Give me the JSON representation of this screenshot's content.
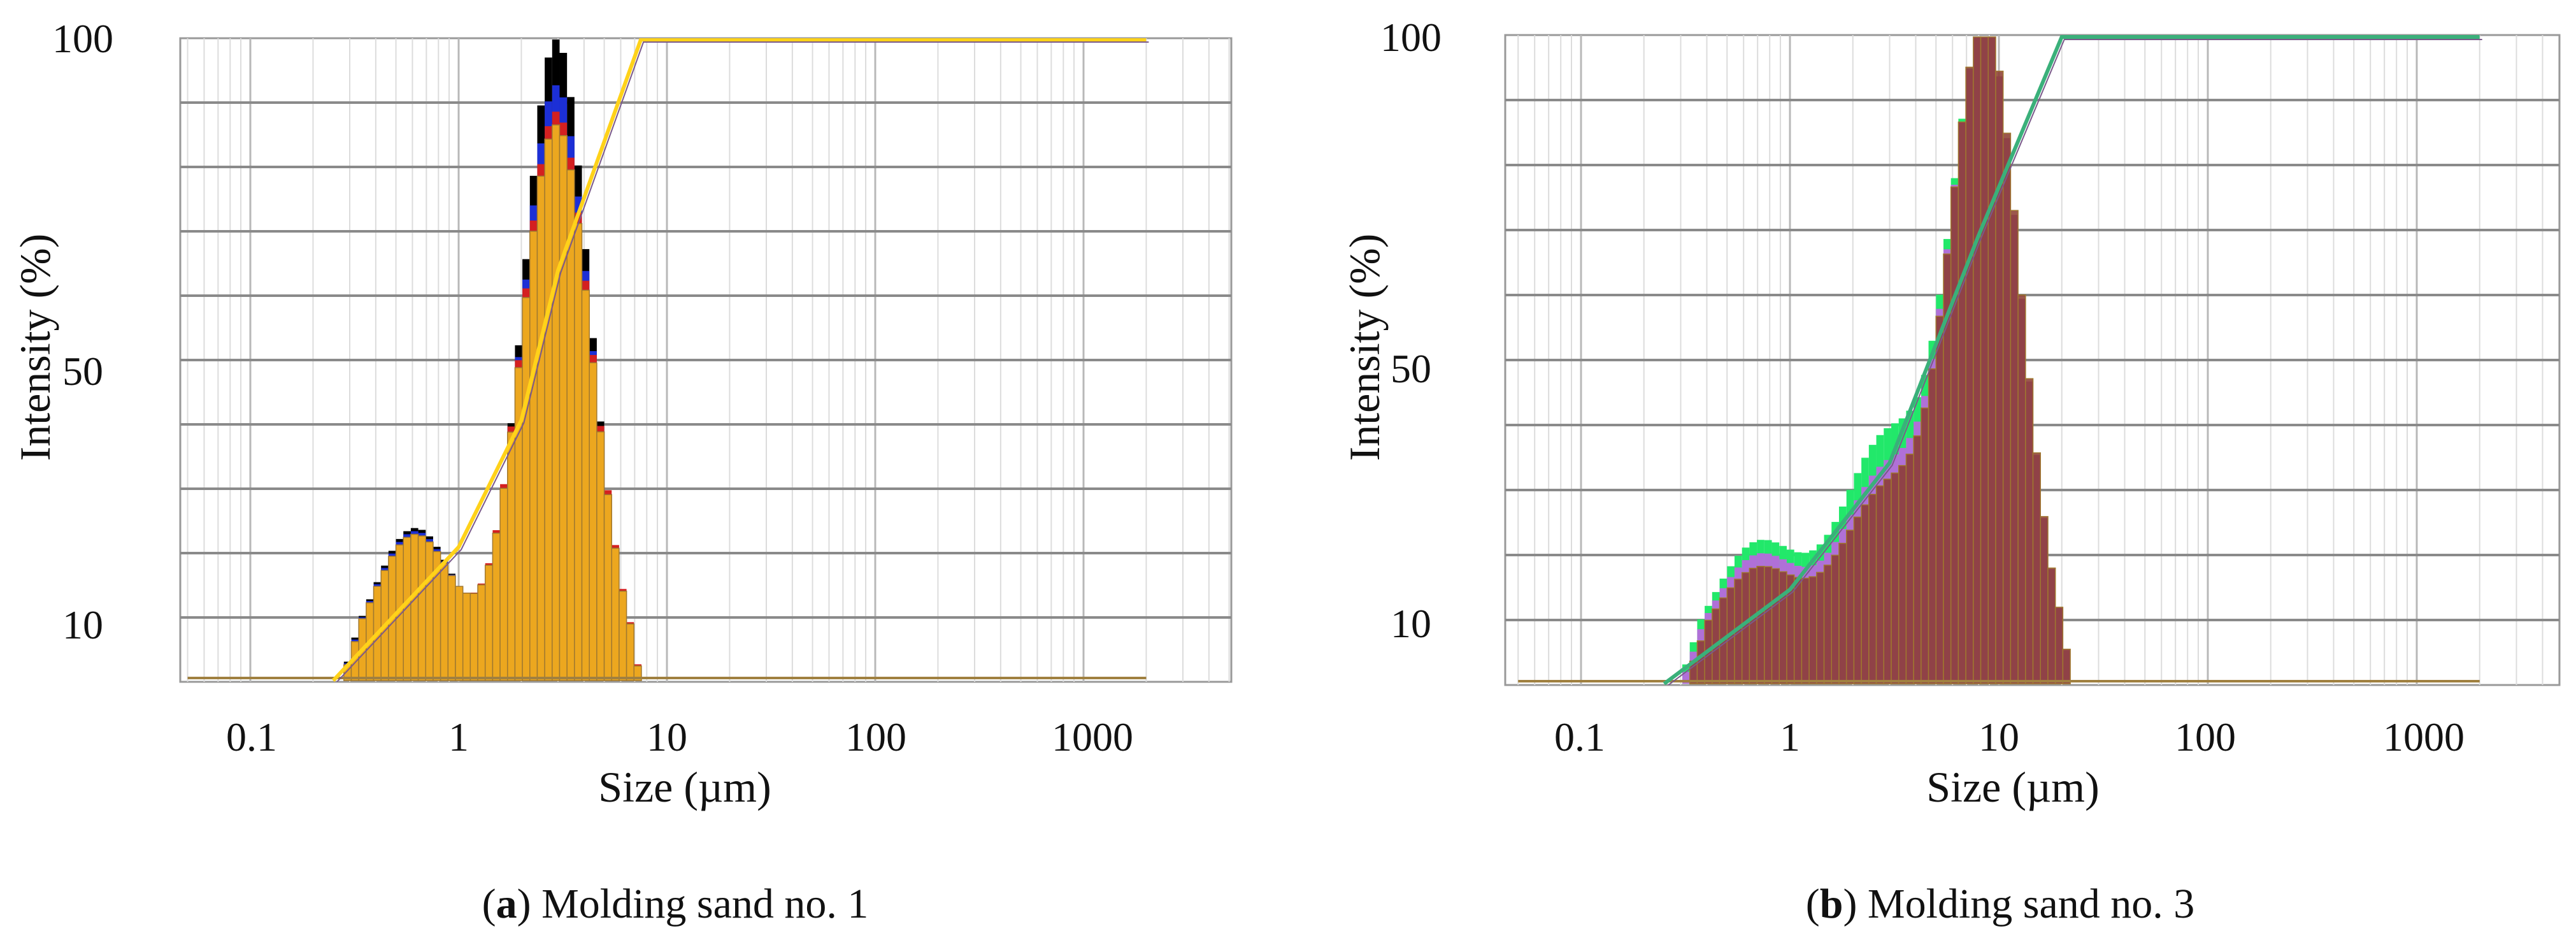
{
  "chart_data": [
    {
      "type": "bar",
      "title": "",
      "caption_letter": "a",
      "caption_text": "Molding sand no. 1",
      "xlabel": "Size (µm)",
      "ylabel": "Intensity (%)",
      "xscale": "log",
      "xlim": [
        0.05,
        3000
      ],
      "ylim": [
        5,
        100
      ],
      "x_ticks": [
        "0.1",
        "1",
        "10",
        "100",
        "1000"
      ],
      "y_ticks": [
        "10",
        "50",
        "100"
      ],
      "grid": true,
      "series": [
        {
          "name": "black",
          "color": "#000000",
          "peaks": [
            {
              "center": 0.62,
              "width": 0.2,
              "height": 25
            },
            {
              "center": 2.95,
              "width": 0.16,
              "height": 100
            }
          ]
        },
        {
          "name": "blue",
          "color": "#1c2fd6",
          "peaks": [
            {
              "center": 0.62,
              "width": 0.2,
              "height": 24.5
            },
            {
              "center": 2.95,
              "width": 0.165,
              "height": 93
            }
          ]
        },
        {
          "name": "red",
          "color": "#d42020",
          "peaks": [
            {
              "center": 0.62,
              "width": 0.2,
              "height": 24
            },
            {
              "center": 2.95,
              "width": 0.17,
              "height": 89
            }
          ]
        },
        {
          "name": "yellow",
          "color": "#f0c020",
          "peaks": [
            {
              "center": 0.62,
              "width": 0.2,
              "height": 24
            },
            {
              "center": 2.95,
              "width": 0.17,
              "height": 87
            }
          ]
        }
      ],
      "cumulative": {
        "color": "#ffd21a",
        "start": 0.25,
        "end": 7.5,
        "shoulder": [
          [
            1.0,
            22
          ],
          [
            2.0,
            42
          ],
          [
            3.0,
            65
          ]
        ]
      }
    },
    {
      "type": "bar",
      "title": "",
      "caption_letter": "b",
      "caption_text": "Molding sand no. 3",
      "xlabel": "Size (µm)",
      "ylabel": "Intensity (%)",
      "xscale": "log",
      "xlim": [
        0.05,
        3000
      ],
      "ylim": [
        5,
        100
      ],
      "x_ticks": [
        "0.1",
        "1",
        "10",
        "100",
        "1000"
      ],
      "y_ticks": [
        "10",
        "50",
        "100"
      ],
      "grid": true,
      "series": [
        {
          "name": "green",
          "color": "#22e86a",
          "peaks": [
            {
              "center": 0.7,
              "width": 0.22,
              "height": 22
            },
            {
              "center": 2.9,
              "width": 0.22,
              "height": 38
            },
            {
              "center": 8.7,
              "width": 0.17,
              "height": 98
            }
          ]
        },
        {
          "name": "violet",
          "color": "#b070d8",
          "peaks": [
            {
              "center": 0.7,
              "width": 0.22,
              "height": 20
            },
            {
              "center": 2.9,
              "width": 0.22,
              "height": 33
            },
            {
              "center": 8.7,
              "width": 0.17,
              "height": 99
            }
          ]
        },
        {
          "name": "brown",
          "color": "#8b3a2e",
          "peaks": [
            {
              "center": 0.7,
              "width": 0.22,
              "height": 18
            },
            {
              "center": 2.9,
              "width": 0.22,
              "height": 30
            },
            {
              "center": 8.7,
              "width": 0.17,
              "height": 100
            }
          ]
        }
      ],
      "cumulative": {
        "color": "#3ab07a",
        "start": 0.25,
        "end": 20,
        "shoulder": [
          [
            1.0,
            15
          ],
          [
            3.0,
            35
          ],
          [
            8.0,
            70
          ]
        ]
      }
    }
  ]
}
